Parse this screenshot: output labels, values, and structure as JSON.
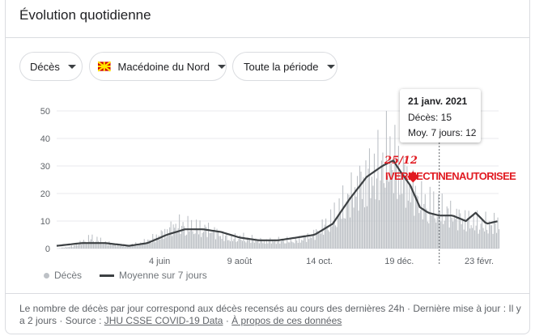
{
  "header": {
    "title": "Évolution quotidienne"
  },
  "filters": [
    {
      "label": "Décès"
    },
    {
      "label": "Macédoine du Nord",
      "flag_colors": {
        "field": "#d20000",
        "sun": "#ffe600"
      }
    },
    {
      "label": "Toute la période"
    }
  ],
  "tooltip": {
    "date": "21 janv. 2021",
    "deaths": "Décès: 15",
    "avg": "Moy. 7 jours: 12"
  },
  "annotation": {
    "line1": "25/12",
    "line2": "IVERMECTINENAUTORISEE",
    "color": "#e11b22"
  },
  "legend": {
    "bars": "Décès",
    "line": "Moyenne sur 7 jours"
  },
  "footer": {
    "note": "Le nombre de décès par jour correspond aux décès recensés au cours des dernières 24h",
    "updated": "Dernière mise à jour : Il y a 2 jours",
    "source_label": "Source :",
    "source_link": "JHU CSSE COVID-19 Data",
    "about_link": "À propos de ces données",
    "sep": "·"
  },
  "chart_data": {
    "type": "bar",
    "title": "",
    "xlabel": "",
    "ylabel": "",
    "ylim": [
      0,
      50
    ],
    "yticks": [
      0,
      10,
      20,
      30,
      40,
      50
    ],
    "x_range": [
      "2020-03-11",
      "2021-03-11"
    ],
    "xticks": [
      {
        "date": "2020-06-04",
        "label": "4 juin"
      },
      {
        "date": "2020-08-09",
        "label": "9 août"
      },
      {
        "date": "2020-10-14",
        "label": "14 oct."
      },
      {
        "date": "2020-12-19",
        "label": "19 déc."
      },
      {
        "date": "2021-02-23",
        "label": "23 févr."
      }
    ],
    "grid": true,
    "highlight_date": "2021-01-21",
    "marker_date": "2020-12-25",
    "colors": {
      "bars": "#bdc1c6",
      "line": "#3c4043",
      "grid": "#e8eaed",
      "marker": "#e11b22"
    },
    "series": [
      {
        "name": "Décès",
        "kind": "bars",
        "points": [
          [
            "2020-03-11",
            0
          ],
          [
            "2020-03-25",
            1
          ],
          [
            "2020-04-08",
            4
          ],
          [
            "2020-04-22",
            2
          ],
          [
            "2020-05-06",
            1
          ],
          [
            "2020-05-20",
            2
          ],
          [
            "2020-06-04",
            5
          ],
          [
            "2020-06-18",
            9
          ],
          [
            "2020-07-02",
            8
          ],
          [
            "2020-07-16",
            7
          ],
          [
            "2020-07-30",
            4
          ],
          [
            "2020-08-13",
            4
          ],
          [
            "2020-08-27",
            3
          ],
          [
            "2020-09-10",
            3
          ],
          [
            "2020-09-24",
            3
          ],
          [
            "2020-10-08",
            5
          ],
          [
            "2020-10-22",
            10
          ],
          [
            "2020-11-05",
            18
          ],
          [
            "2020-11-19",
            26
          ],
          [
            "2020-12-03",
            31
          ],
          [
            "2020-12-10",
            36
          ],
          [
            "2020-12-19",
            30
          ],
          [
            "2020-12-25",
            25
          ],
          [
            "2021-01-07",
            17
          ],
          [
            "2021-01-21",
            15
          ],
          [
            "2021-02-04",
            12
          ],
          [
            "2021-02-18",
            10
          ],
          [
            "2021-03-04",
            9
          ],
          [
            "2021-03-11",
            10
          ]
        ]
      },
      {
        "name": "Moyenne sur 7 jours",
        "kind": "line",
        "points": [
          [
            "2020-03-11",
            1
          ],
          [
            "2020-04-01",
            2
          ],
          [
            "2020-04-20",
            2
          ],
          [
            "2020-05-10",
            1
          ],
          [
            "2020-05-25",
            2
          ],
          [
            "2020-06-10",
            5
          ],
          [
            "2020-06-25",
            7
          ],
          [
            "2020-07-10",
            7
          ],
          [
            "2020-07-25",
            6
          ],
          [
            "2020-08-09",
            4
          ],
          [
            "2020-08-25",
            3
          ],
          [
            "2020-09-10",
            3
          ],
          [
            "2020-09-25",
            4
          ],
          [
            "2020-10-10",
            5
          ],
          [
            "2020-10-25",
            9
          ],
          [
            "2020-11-08",
            18
          ],
          [
            "2020-11-22",
            26
          ],
          [
            "2020-12-05",
            30
          ],
          [
            "2020-12-14",
            32
          ],
          [
            "2020-12-20",
            28
          ],
          [
            "2020-12-28",
            23
          ],
          [
            "2021-01-05",
            15
          ],
          [
            "2021-01-12",
            13
          ],
          [
            "2021-01-21",
            12
          ],
          [
            "2021-02-01",
            12
          ],
          [
            "2021-02-12",
            10
          ],
          [
            "2021-02-20",
            13
          ],
          [
            "2021-03-01",
            9
          ],
          [
            "2021-03-11",
            10
          ]
        ]
      }
    ]
  }
}
